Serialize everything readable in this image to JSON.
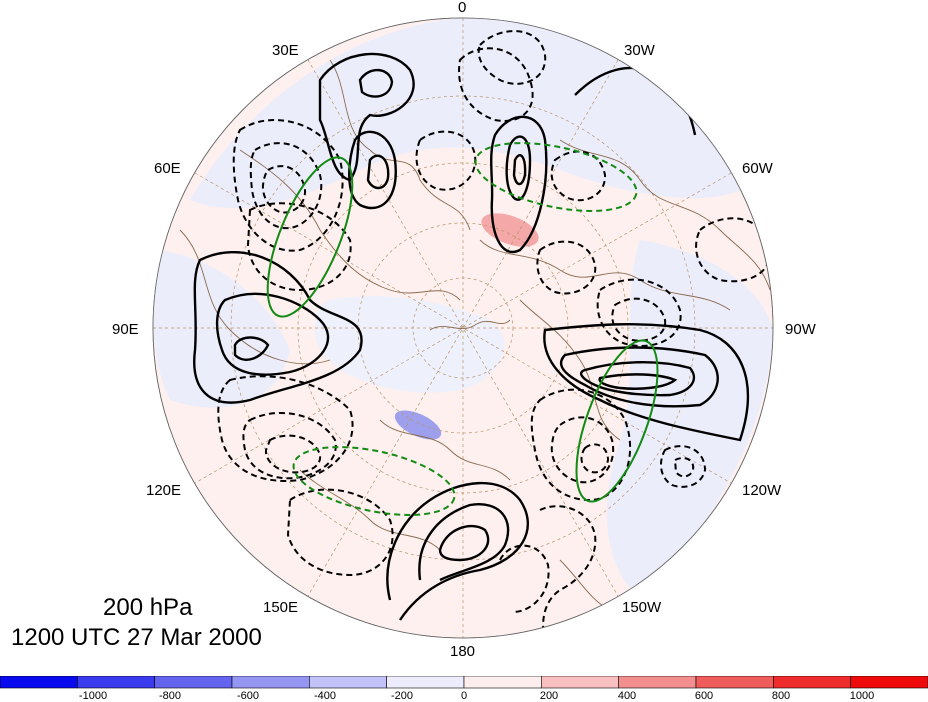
{
  "map": {
    "type": "polar-stereographic",
    "hemisphere": "north",
    "pressure_level": "200 hPa",
    "valid_time": "1200 UTC 27 Mar 2000",
    "longitude_labels": {
      "lon_0": "0",
      "lon_30e": "30E",
      "lon_30w": "30W",
      "lon_60e": "60E",
      "lon_60w": "60W",
      "lon_90e": "90E",
      "lon_90w": "90W",
      "lon_120e": "120E",
      "lon_120w": "120W",
      "lon_150e": "150E",
      "lon_150w": "150W",
      "lon_180": "180"
    },
    "colors": {
      "background_fill": "#fdf0ee",
      "negative_fill": "#ecedfb",
      "contour_positive": "#000000",
      "contour_negative": "#000000",
      "ellipse": "#138a13",
      "coastline": "#8a6a50",
      "graticule": "#b8926a"
    }
  },
  "colorbar": {
    "ticks": [
      "-1000",
      "-800",
      "-600",
      "-400",
      "-200",
      "0",
      "200",
      "400",
      "600",
      "800",
      "1000"
    ],
    "colors": [
      "#0a0aee",
      "#3b3bee",
      "#6464ee",
      "#9595f2",
      "#c2c2f8",
      "#ececfc",
      "#fceeec",
      "#f8c0c0",
      "#f28e8e",
      "#ee5c5c",
      "#ee2c2c",
      "#ee0a0a"
    ]
  }
}
